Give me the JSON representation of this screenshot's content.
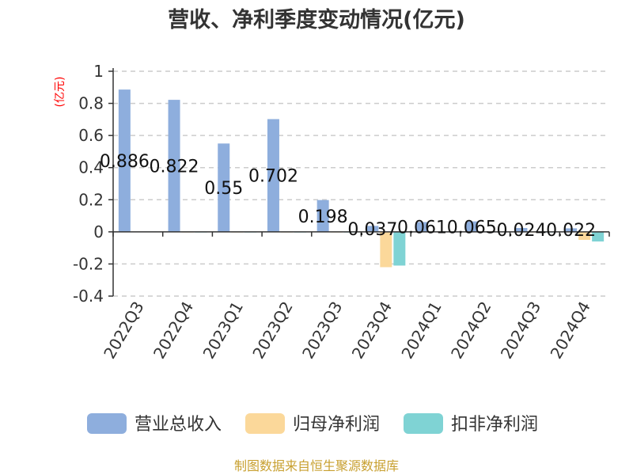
{
  "chart_data": {
    "type": "bar",
    "title": "营收、净利季度变动情况(亿元)",
    "ylabel": "(亿元)",
    "ylim": [
      -0.4,
      1
    ],
    "yticks": [
      "1",
      "0.8",
      "0.6",
      "0.4",
      "0.2",
      "0",
      "-0.2",
      "-0.4"
    ],
    "categories": [
      "2022Q3",
      "2022Q4",
      "2023Q1",
      "2023Q2",
      "2023Q3",
      "2023Q4",
      "2024Q1",
      "2024Q2",
      "2024Q3",
      "2024Q4"
    ],
    "series": [
      {
        "name": "营业总收入",
        "color": "#8eaedd",
        "values": [
          0.886,
          0.822,
          0.55,
          0.702,
          0.198,
          0.037,
          0.061,
          0.065,
          0.024,
          0.022
        ],
        "labels": [
          "0.886",
          "0.822",
          "0.55",
          "0.702",
          "0.198",
          "0.037",
          "0.061",
          "0.065",
          "0.024",
          "0.022"
        ]
      },
      {
        "name": "归母净利润",
        "color": "#fbd89a",
        "values": [
          0.002,
          0.001,
          0.001,
          0.001,
          0.001,
          -0.22,
          0.002,
          0.002,
          0.001,
          -0.05
        ]
      },
      {
        "name": "扣非净利润",
        "color": "#7fd3d4",
        "values": [
          0.002,
          0.001,
          0.001,
          0.001,
          0.001,
          -0.21,
          0.002,
          0.002,
          0.001,
          -0.06
        ]
      }
    ],
    "grid": true,
    "legend_position": "bottom"
  },
  "source": "制图数据来自恒生聚源数据库"
}
